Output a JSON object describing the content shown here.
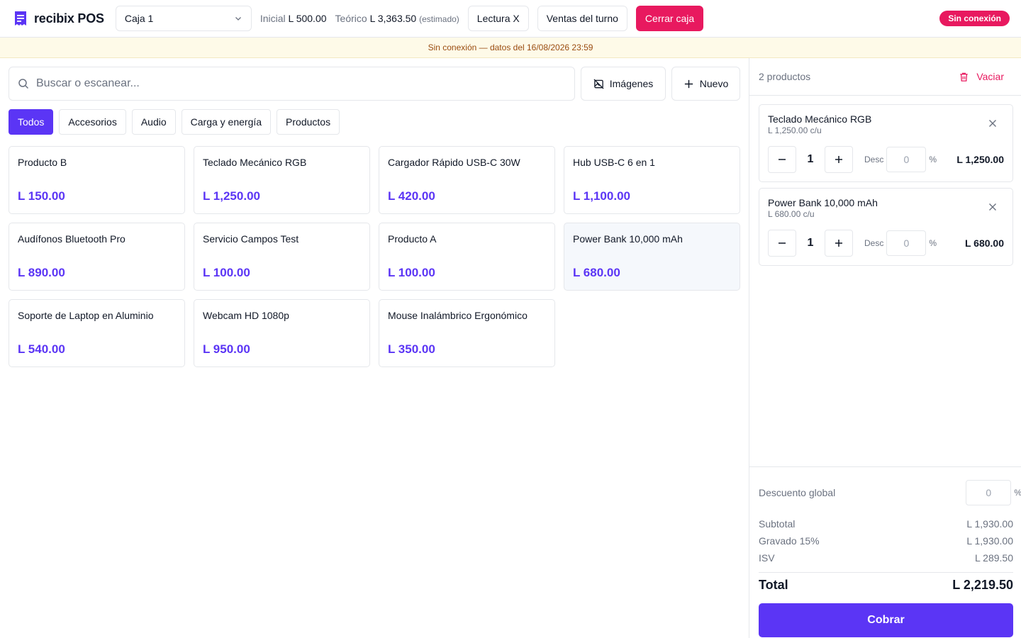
{
  "header": {
    "brand": "recibix POS",
    "register": "Caja 1",
    "initial_label": "Inicial",
    "initial_value": "L 500.00",
    "theoretical_label": "Teórico",
    "theoretical_value": "L 3,363.50",
    "theoretical_note": "(estimado)",
    "btn_reading": "Lectura X",
    "btn_shift_sales": "Ventas del turno",
    "btn_close": "Cerrar caja",
    "status_badge": "Sin conexión"
  },
  "banner": "Sin conexión — datos del 16/08/2026 23:59",
  "search": {
    "placeholder": "Buscar o escanear..."
  },
  "tools": {
    "images": "Imágenes",
    "new": "Nuevo"
  },
  "categories": [
    {
      "label": "Todos",
      "active": true
    },
    {
      "label": "Accesorios",
      "active": false
    },
    {
      "label": "Audio",
      "active": false
    },
    {
      "label": "Carga y energía",
      "active": false
    },
    {
      "label": "Productos",
      "active": false
    }
  ],
  "products": [
    {
      "name": "Producto B",
      "price": "L 150.00"
    },
    {
      "name": "Teclado Mecánico RGB",
      "price": "L 1,250.00"
    },
    {
      "name": "Cargador Rápido USB-C 30W",
      "price": "L 420.00"
    },
    {
      "name": "Hub USB-C 6 en 1",
      "price": "L 1,100.00"
    },
    {
      "name": "Audífonos Bluetooth Pro",
      "price": "L 890.00"
    },
    {
      "name": "Servicio Campos Test",
      "price": "L 100.00"
    },
    {
      "name": "Producto A",
      "price": "L 100.00"
    },
    {
      "name": "Power Bank 10,000 mAh",
      "price": "L 680.00"
    },
    {
      "name": "Soporte de Laptop en Aluminio",
      "price": "L 540.00"
    },
    {
      "name": "Webcam HD 1080p",
      "price": "L 950.00"
    },
    {
      "name": "Mouse Inalámbrico Ergonómico",
      "price": "L 350.00"
    }
  ],
  "cart": {
    "count": "2 productos",
    "clear_label": "Vaciar",
    "lines": [
      {
        "name": "Teclado Mecánico RGB",
        "unit": "L 1,250.00 c/u",
        "qty": "1",
        "desc_label": "Desc",
        "desc_value": "0",
        "pct": "%",
        "total": "L 1,250.00"
      },
      {
        "name": "Power Bank 10,000 mAh",
        "unit": "L 680.00 c/u",
        "qty": "1",
        "desc_label": "Desc",
        "desc_value": "0",
        "pct": "%",
        "total": "L 680.00"
      }
    ]
  },
  "summary": {
    "global_discount_label": "Descuento global",
    "global_discount_value": "0",
    "pct": "%",
    "subtotal_label": "Subtotal",
    "subtotal_value": "L 1,930.00",
    "taxable_label": "Gravado 15%",
    "taxable_value": "L 1,930.00",
    "tax_label": "ISV",
    "tax_value": "L 289.50",
    "total_label": "Total",
    "total_value": "L 2,219.50",
    "pay_label": "Cobrar"
  },
  "colors": {
    "accent": "#5b35f5",
    "danger": "#e8195f",
    "banner_bg": "#fefae8",
    "banner_text": "#9a4c10"
  }
}
